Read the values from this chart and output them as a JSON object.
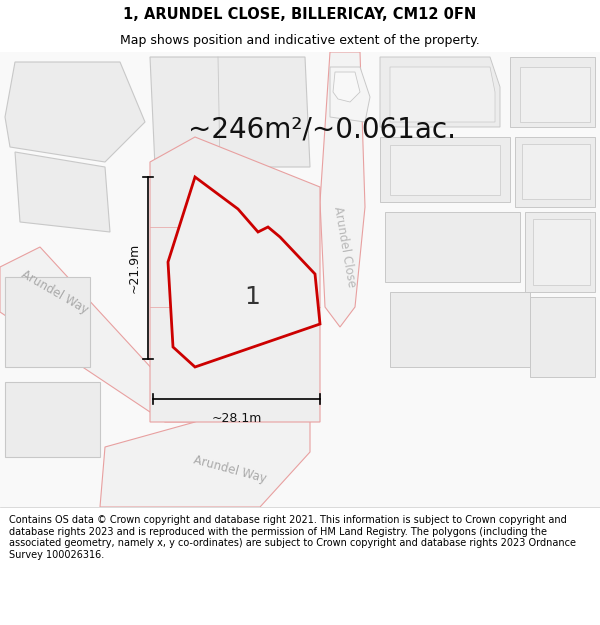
{
  "title_line1": "1, ARUNDEL CLOSE, BILLERICAY, CM12 0FN",
  "title_line2": "Map shows position and indicative extent of the property.",
  "area_text": "~246m²/~0.061ac.",
  "dim_width": "~28.1m",
  "dim_height": "~21.9m",
  "plot_label": "1",
  "road_label_left": "Arundel Way",
  "road_label_right": "Arundel Close",
  "road_label_bottom": "Arundel Way",
  "footer_text": "Contains OS data © Crown copyright and database right 2021. This information is subject to Crown copyright and database rights 2023 and is reproduced with the permission of HM Land Registry. The polygons (including the associated geometry, namely x, y co-ordinates) are subject to Crown copyright and database rights 2023 Ordnance Survey 100026316.",
  "map_bg": "#f7f7f7",
  "block_fill": "#ececec",
  "block_outline": "#e8a0a0",
  "gray_outline": "#c8c8c8",
  "red_color": "#cc0000",
  "prop_fill": "#efefef",
  "title_fontsize": 10.5,
  "subtitle_fontsize": 9,
  "area_fontsize": 20,
  "footer_fontsize": 7.0,
  "dim_fontsize": 9,
  "road_fontsize": 8.5,
  "plot_label_fontsize": 18
}
